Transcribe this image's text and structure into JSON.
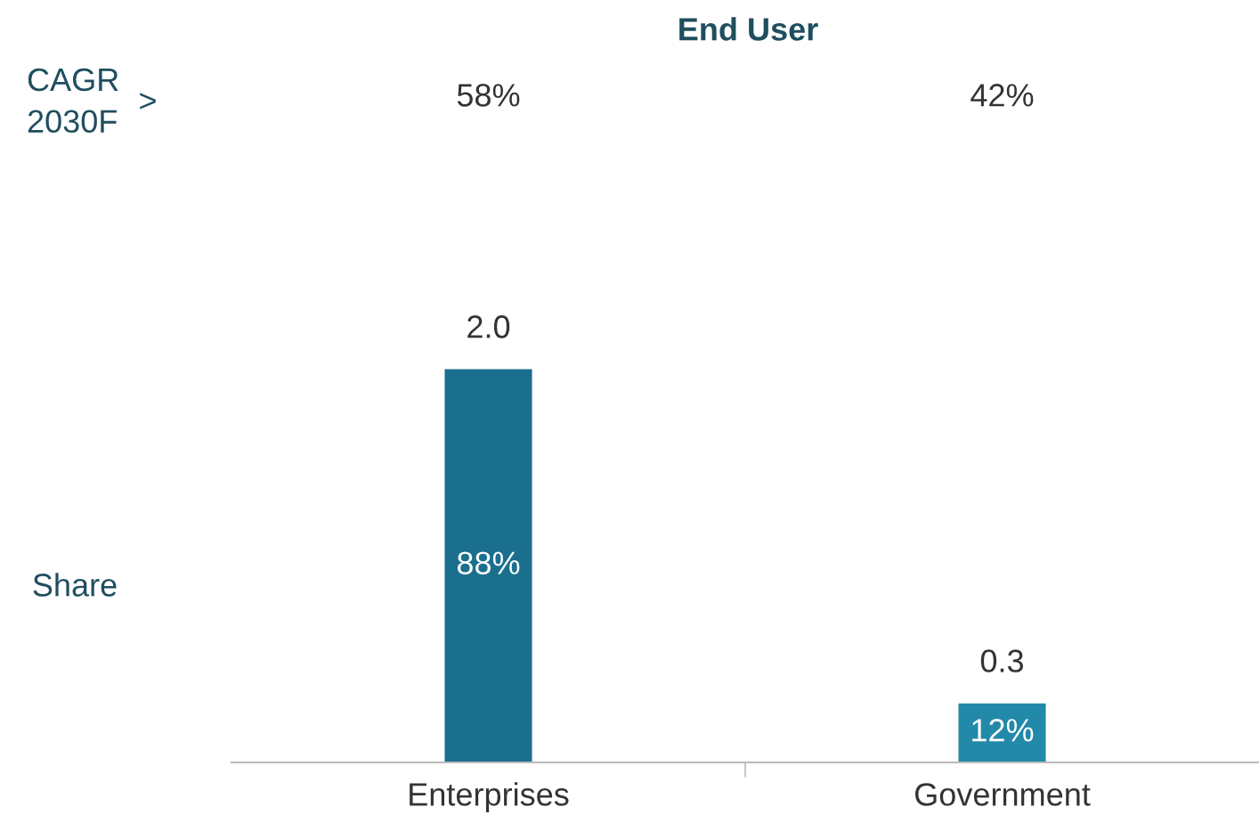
{
  "chart_data": {
    "type": "bar",
    "title": "End User",
    "categories": [
      "Enterprises",
      "Government"
    ],
    "values": [
      2.0,
      0.3
    ],
    "value_labels": [
      "2.0",
      "0.3"
    ],
    "colors": [
      "#1b6f8e",
      "#2389a8"
    ],
    "annotations": [
      "CAGR\n2030F",
      ">",
      "58%",
      "42%",
      "Share",
      "88%",
      "12%"
    ]
  }
}
